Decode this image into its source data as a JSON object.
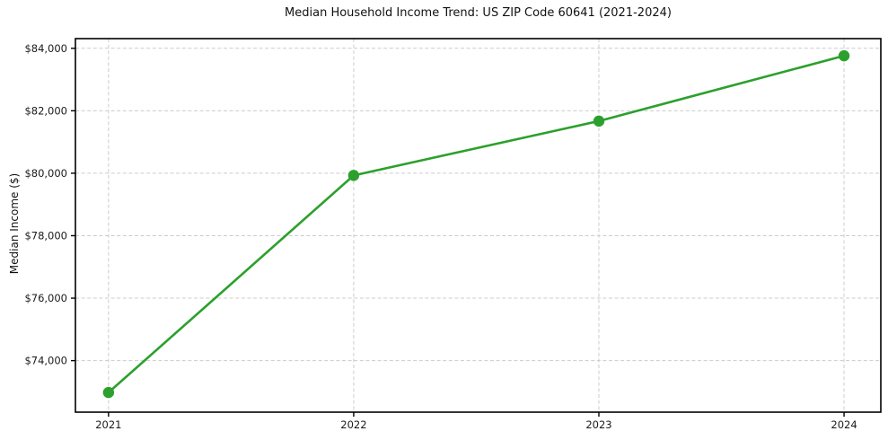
{
  "chart_data": {
    "type": "line",
    "title": "Median Household Income Trend: US ZIP Code 60641 (2021-2024)",
    "xlabel": "",
    "ylabel": "Median Income ($)",
    "x": [
      2021,
      2022,
      2023,
      2024
    ],
    "series": [
      {
        "values": [
          72980,
          79930,
          81670,
          83760
        ],
        "color": "#2ca02c",
        "marker": "circle"
      }
    ],
    "xtick_values": [
      2021,
      2022,
      2023,
      2024
    ],
    "xtick_labels": [
      "2021",
      "2022",
      "2023",
      "2024"
    ],
    "ytick_values": [
      74000,
      76000,
      78000,
      80000,
      82000,
      84000
    ],
    "ytick_labels": [
      "$74,000",
      "$76,000",
      "$78,000",
      "$80,000",
      "$82,000",
      "$84,000"
    ],
    "xlim": [
      2020.865,
      2024.15
    ],
    "ylim": [
      72350,
      84310
    ],
    "grid": true,
    "grid_style": "dashed",
    "grid_color": "#cccccc",
    "axis_color": "#000000",
    "text_color": "#1a1a1a",
    "background_color": "#ffffff",
    "legend_position": "none"
  }
}
